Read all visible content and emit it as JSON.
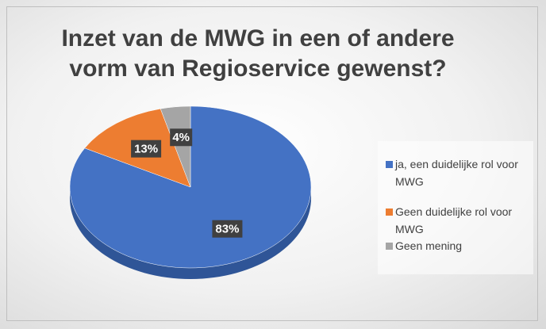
{
  "chart_data": {
    "type": "pie",
    "title": "Inzet van de MWG in een of andere vorm van Regioservice gewenst?",
    "categories": [
      "ja, een duidelijke rol voor MWG",
      "Geen duidelijke rol voor MWG",
      "Geen mening"
    ],
    "values": [
      83,
      13,
      4
    ],
    "value_labels": [
      "83%",
      "13%",
      "4%"
    ],
    "colors": [
      "#4472c4",
      "#ed7d31",
      "#a5a5a5"
    ],
    "legend": "right"
  }
}
